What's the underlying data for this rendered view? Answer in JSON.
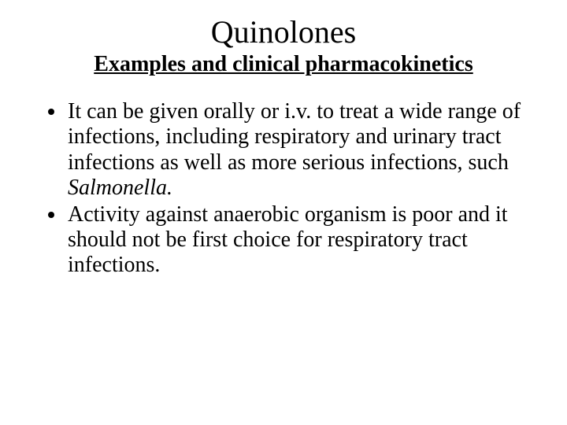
{
  "background_color": "#ffffff",
  "text_color": "#000000",
  "font_family": "Times New Roman",
  "title": {
    "text": "Quinolones",
    "fontsize": 40,
    "bold": false,
    "align": "center"
  },
  "subtitle": {
    "text": "Examples and clinical pharmacokinetics",
    "fontsize": 28,
    "bold": true,
    "underline": true,
    "align": "center"
  },
  "bullets": {
    "fontsize": 28,
    "marker": "disc",
    "items": [
      {
        "text_pre": "It can be given orally or i.v. to treat a wide range of infections, including respiratory and urinary tract infections as well as more serious infections, such ",
        "italic_segment": "Salmonella.",
        "text_post": ""
      },
      {
        "text_pre": "Activity against anaerobic organism is poor and it should not be  first choice for respiratory tract infections.",
        "italic_segment": "",
        "text_post": ""
      }
    ]
  }
}
